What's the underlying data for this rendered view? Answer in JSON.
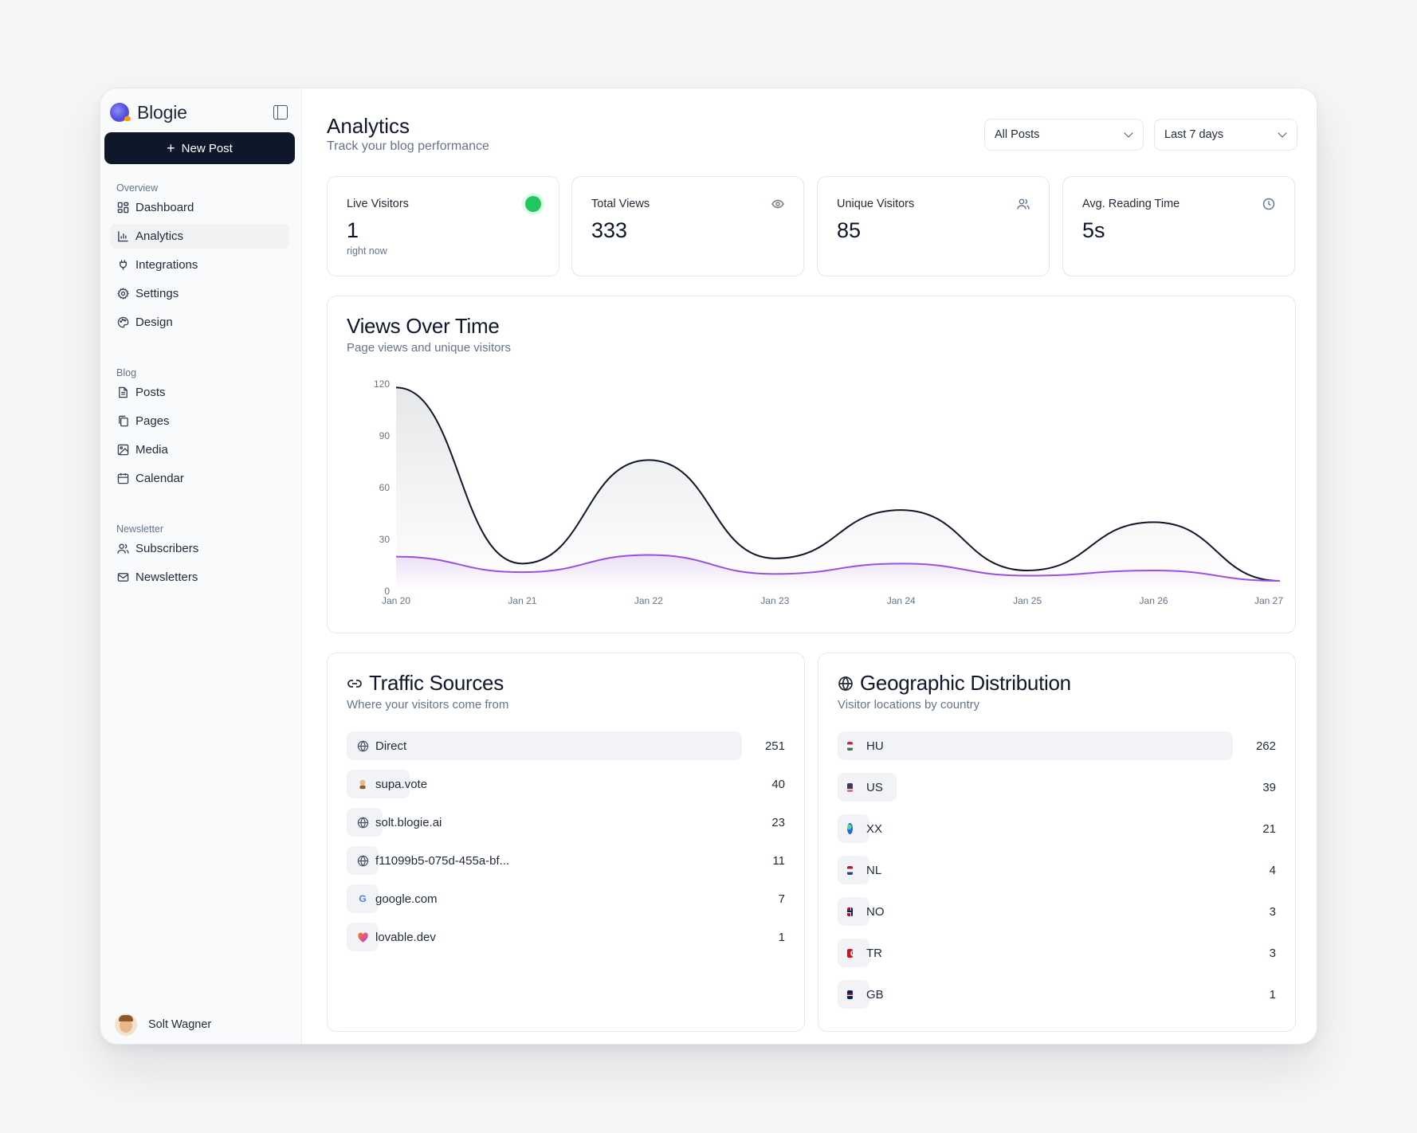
{
  "app": {
    "name": "Blogie",
    "new_post_label": "New Post"
  },
  "sidebar": {
    "sections": [
      {
        "label": "Overview"
      },
      {
        "label": "Blog"
      },
      {
        "label": "Newsletter"
      }
    ],
    "items": [
      {
        "label": "Dashboard",
        "icon": "dashboard-icon"
      },
      {
        "label": "Analytics",
        "icon": "bar-chart-icon",
        "active": true
      },
      {
        "label": "Integrations",
        "icon": "plug-icon"
      },
      {
        "label": "Settings",
        "icon": "gear-icon"
      },
      {
        "label": "Design",
        "icon": "palette-icon"
      },
      {
        "label": "Posts",
        "icon": "file-icon"
      },
      {
        "label": "Pages",
        "icon": "copy-icon"
      },
      {
        "label": "Media",
        "icon": "image-icon"
      },
      {
        "label": "Calendar",
        "icon": "calendar-icon"
      },
      {
        "label": "Subscribers",
        "icon": "users-icon"
      },
      {
        "label": "Newsletters",
        "icon": "mail-icon"
      }
    ],
    "user_name": "Solt Wagner"
  },
  "header": {
    "title": "Analytics",
    "subtitle": "Track your blog performance",
    "filter_posts": "All Posts",
    "filter_range": "Last 7 days"
  },
  "stats": [
    {
      "label": "Live Visitors",
      "value": "1",
      "note": "right now",
      "icon": "live-dot"
    },
    {
      "label": "Total Views",
      "value": "333",
      "icon": "eye-icon"
    },
    {
      "label": "Unique Visitors",
      "value": "85",
      "icon": "users-icon"
    },
    {
      "label": "Avg. Reading Time",
      "value": "5s",
      "icon": "clock-icon"
    }
  ],
  "views_chart": {
    "title": "Views Over Time",
    "subtitle": "Page views and unique visitors"
  },
  "chart_data": {
    "type": "area",
    "categories": [
      "Jan 20",
      "Jan 21",
      "Jan 22",
      "Jan 23",
      "Jan 24",
      "Jan 25",
      "Jan 26",
      "Jan 27"
    ],
    "series": [
      {
        "values": [
          118,
          16,
          76,
          19,
          47,
          12,
          40,
          6
        ],
        "color": "#0f172a"
      },
      {
        "values": [
          20,
          11,
          21,
          10,
          16,
          9,
          12,
          6
        ],
        "color": "#9b51e0"
      }
    ],
    "yticks": [
      "0",
      "30",
      "60",
      "90",
      "120"
    ],
    "ylim": [
      0,
      120
    ]
  },
  "traffic": {
    "title": "Traffic Sources",
    "subtitle": "Where your visitors come from",
    "rows": [
      {
        "label": "Direct",
        "count": "251",
        "value": 251,
        "icon": "globe-icon"
      },
      {
        "label": "supa.vote",
        "count": "40",
        "value": 40,
        "icon": "supa-vote-icon"
      },
      {
        "label": "solt.blogie.ai",
        "count": "23",
        "value": 23,
        "icon": "globe-icon"
      },
      {
        "label": "f11099b5-075d-455a-bf...",
        "count": "11",
        "value": 11,
        "icon": "globe-icon"
      },
      {
        "label": "google.com",
        "count": "7",
        "value": 7,
        "icon": "google-icon"
      },
      {
        "label": "lovable.dev",
        "count": "1",
        "value": 1,
        "icon": "lovable-icon"
      }
    ]
  },
  "geo": {
    "title": "Geographic Distribution",
    "subtitle": "Visitor locations by country",
    "rows": [
      {
        "label": "HU",
        "count": "262",
        "value": 262,
        "icon": "flag-hu-icon"
      },
      {
        "label": "US",
        "count": "39",
        "value": 39,
        "icon": "flag-us-icon"
      },
      {
        "label": "XX",
        "count": "21",
        "value": 21,
        "icon": "globe-emoji-icon"
      },
      {
        "label": "NL",
        "count": "4",
        "value": 4,
        "icon": "flag-nl-icon"
      },
      {
        "label": "NO",
        "count": "3",
        "value": 3,
        "icon": "flag-no-icon"
      },
      {
        "label": "TR",
        "count": "3",
        "value": 3,
        "icon": "flag-tr-icon"
      },
      {
        "label": "GB",
        "count": "1",
        "value": 1,
        "icon": "flag-gb-icon"
      }
    ]
  }
}
